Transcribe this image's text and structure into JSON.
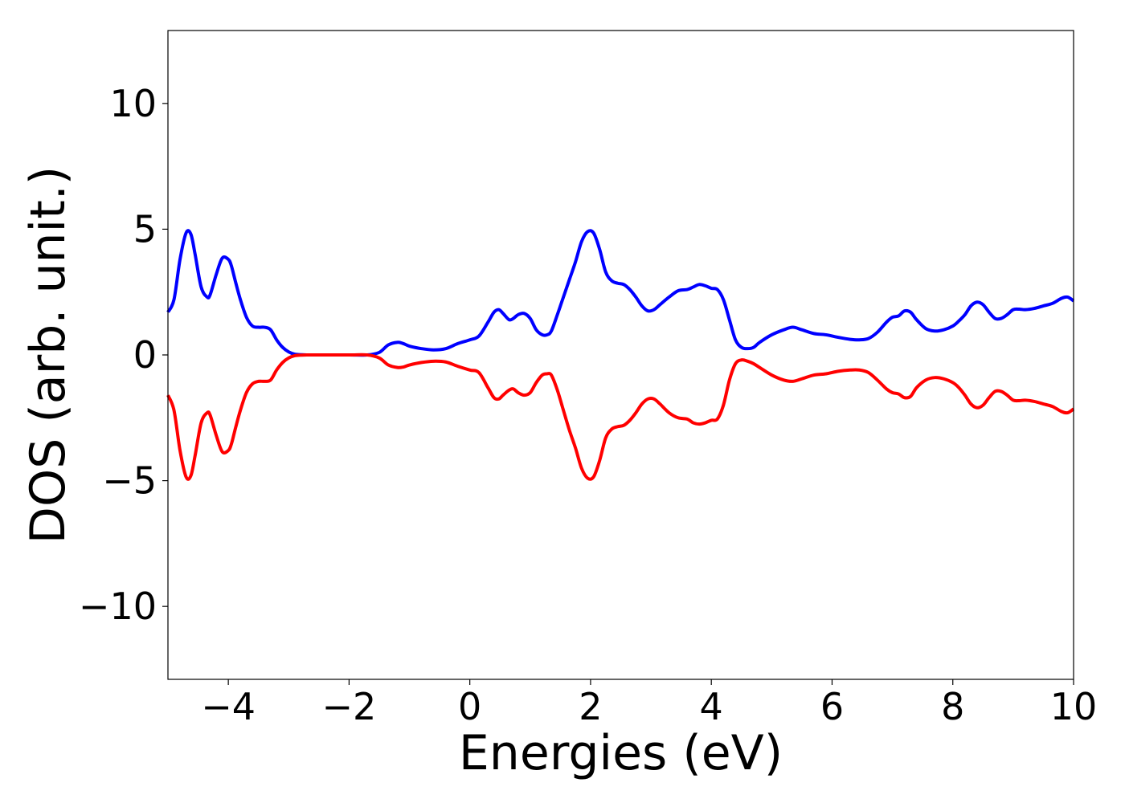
{
  "chart_data": {
    "type": "line",
    "title": "",
    "xlabel": "Energies (eV)",
    "ylabel": "DOS (arb. unit.)",
    "xlim": [
      -5,
      10
    ],
    "ylim": [
      -12.9,
      12.9
    ],
    "xticks": [
      -4,
      -2,
      0,
      2,
      4,
      6,
      8,
      10
    ],
    "xtick_labels": [
      "−4",
      "−2",
      "0",
      "2",
      "4",
      "6",
      "8",
      "10"
    ],
    "yticks": [
      -10,
      -5,
      0,
      5,
      10
    ],
    "ytick_labels": [
      "−10",
      "−5",
      "0",
      "5",
      "10"
    ],
    "grid": false,
    "legend": "none",
    "x": [
      -5.0,
      -4.9,
      -4.8,
      -4.7,
      -4.62,
      -4.55,
      -4.45,
      -4.35,
      -4.3,
      -4.2,
      -4.1,
      -4.0,
      -3.95,
      -3.88,
      -3.8,
      -3.7,
      -3.6,
      -3.5,
      -3.4,
      -3.3,
      -3.2,
      -3.1,
      -3.0,
      -2.9,
      -2.8,
      -2.7,
      -2.5,
      -2.0,
      -1.7,
      -1.5,
      -1.35,
      -1.2,
      -1.1,
      -1.0,
      -0.8,
      -0.6,
      -0.4,
      -0.2,
      0.0,
      0.15,
      0.3,
      0.4,
      0.48,
      0.55,
      0.65,
      0.72,
      0.8,
      0.9,
      1.0,
      1.1,
      1.2,
      1.28,
      1.35,
      1.45,
      1.55,
      1.65,
      1.75,
      1.85,
      1.95,
      2.05,
      2.15,
      2.25,
      2.35,
      2.45,
      2.55,
      2.65,
      2.75,
      2.85,
      2.95,
      3.05,
      3.15,
      3.3,
      3.45,
      3.6,
      3.7,
      3.8,
      3.9,
      4.0,
      4.1,
      4.2,
      4.3,
      4.4,
      4.5,
      4.6,
      4.7,
      4.8,
      5.0,
      5.2,
      5.35,
      5.5,
      5.7,
      5.9,
      6.1,
      6.3,
      6.45,
      6.6,
      6.75,
      6.9,
      7.0,
      7.1,
      7.2,
      7.3,
      7.4,
      7.55,
      7.7,
      7.85,
      8.0,
      8.1,
      8.2,
      8.3,
      8.4,
      8.5,
      8.6,
      8.7,
      8.8,
      8.9,
      9.0,
      9.1,
      9.2,
      9.35,
      9.5,
      9.65,
      9.8,
      9.9,
      10.0
    ],
    "series": [
      {
        "color": "#0000ff",
        "values": [
          1.7,
          2.2,
          3.8,
          4.85,
          4.8,
          4.0,
          2.7,
          2.3,
          2.4,
          3.2,
          3.85,
          3.8,
          3.55,
          2.9,
          2.2,
          1.5,
          1.15,
          1.1,
          1.1,
          1.0,
          0.6,
          0.3,
          0.12,
          0.03,
          0.01,
          0.0,
          0.0,
          0.0,
          0.0,
          0.1,
          0.4,
          0.5,
          0.45,
          0.35,
          0.25,
          0.2,
          0.25,
          0.45,
          0.6,
          0.75,
          1.3,
          1.7,
          1.8,
          1.65,
          1.4,
          1.45,
          1.6,
          1.65,
          1.45,
          1.0,
          0.8,
          0.8,
          0.95,
          1.6,
          2.3,
          3.0,
          3.7,
          4.5,
          4.9,
          4.85,
          4.2,
          3.3,
          2.95,
          2.85,
          2.8,
          2.6,
          2.3,
          1.95,
          1.75,
          1.8,
          2.0,
          2.3,
          2.55,
          2.6,
          2.7,
          2.8,
          2.75,
          2.65,
          2.6,
          2.2,
          1.4,
          0.6,
          0.3,
          0.25,
          0.3,
          0.5,
          0.8,
          1.0,
          1.1,
          1.0,
          0.85,
          0.8,
          0.7,
          0.62,
          0.6,
          0.65,
          0.9,
          1.3,
          1.5,
          1.55,
          1.75,
          1.7,
          1.4,
          1.05,
          0.95,
          1.0,
          1.15,
          1.35,
          1.6,
          1.95,
          2.1,
          2.0,
          1.7,
          1.45,
          1.45,
          1.6,
          1.8,
          1.82,
          1.8,
          1.85,
          1.95,
          2.05,
          2.25,
          2.3,
          2.15
        ]
      },
      {
        "color": "#ff0000",
        "values": [
          -1.6,
          -2.2,
          -3.8,
          -4.85,
          -4.8,
          -4.0,
          -2.7,
          -2.3,
          -2.4,
          -3.2,
          -3.85,
          -3.8,
          -3.55,
          -2.9,
          -2.2,
          -1.5,
          -1.15,
          -1.05,
          -1.05,
          -1.0,
          -0.6,
          -0.3,
          -0.12,
          -0.03,
          -0.01,
          0.0,
          0.0,
          0.0,
          0.0,
          -0.12,
          -0.4,
          -0.5,
          -0.48,
          -0.4,
          -0.3,
          -0.25,
          -0.28,
          -0.45,
          -0.6,
          -0.7,
          -1.3,
          -1.7,
          -1.75,
          -1.6,
          -1.4,
          -1.35,
          -1.5,
          -1.6,
          -1.5,
          -1.1,
          -0.8,
          -0.75,
          -0.8,
          -1.4,
          -2.2,
          -3.0,
          -3.7,
          -4.5,
          -4.9,
          -4.85,
          -4.2,
          -3.3,
          -2.95,
          -2.85,
          -2.8,
          -2.6,
          -2.3,
          -1.95,
          -1.75,
          -1.75,
          -1.95,
          -2.3,
          -2.5,
          -2.55,
          -2.7,
          -2.75,
          -2.7,
          -2.6,
          -2.55,
          -2.0,
          -1.0,
          -0.35,
          -0.2,
          -0.25,
          -0.35,
          -0.5,
          -0.8,
          -1.0,
          -1.05,
          -0.95,
          -0.8,
          -0.75,
          -0.65,
          -0.6,
          -0.6,
          -0.7,
          -1.0,
          -1.35,
          -1.5,
          -1.55,
          -1.7,
          -1.65,
          -1.3,
          -1.0,
          -0.9,
          -0.95,
          -1.1,
          -1.3,
          -1.6,
          -1.95,
          -2.1,
          -2.0,
          -1.7,
          -1.45,
          -1.45,
          -1.6,
          -1.8,
          -1.82,
          -1.8,
          -1.85,
          -1.95,
          -2.05,
          -2.25,
          -2.3,
          -2.15
        ]
      }
    ]
  }
}
